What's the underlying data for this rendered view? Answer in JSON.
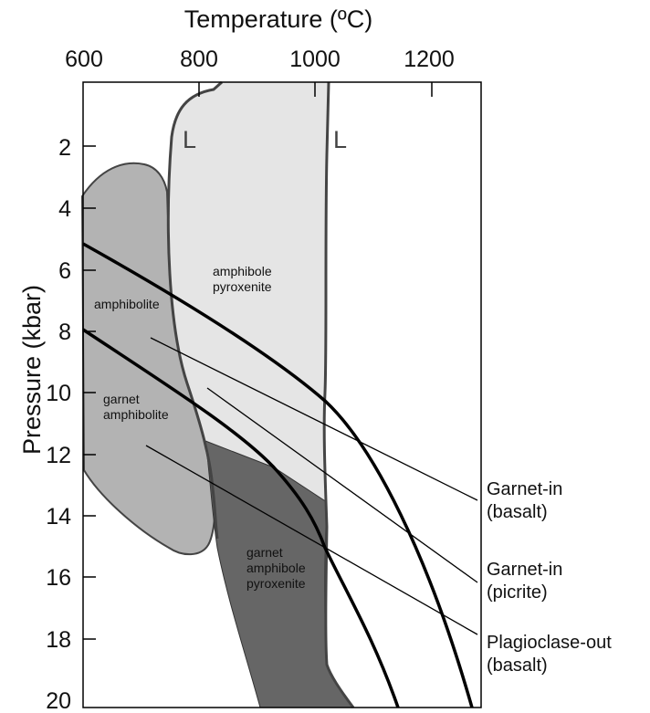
{
  "title": "",
  "axes": {
    "x_title": "Temperature (ºC)",
    "y_title": "Pressure (kbar)",
    "x_ticks": [
      "600",
      "800",
      "1000",
      "1200"
    ],
    "y_ticks": [
      "2",
      "4",
      "6",
      "8",
      "10",
      "12",
      "14",
      "16",
      "18",
      "20"
    ]
  },
  "fields": {
    "amphibolite": "amphibolite",
    "garnet_amphibolite": [
      "garnet",
      "amphibolite"
    ],
    "amphibole_pyroxenite": [
      "amphibole",
      "pyroxenite"
    ],
    "garnet_amphibole_pyroxenite": [
      "garnet",
      "amphibole",
      "pyroxenite"
    ]
  },
  "liquidus_labels": [
    "L",
    "L"
  ],
  "curves": {
    "garnet_in_basalt": [
      "Garnet-in",
      "(basalt)"
    ],
    "garnet_in_picrite": [
      "Garnet-in",
      "(picrite)"
    ],
    "plagioclase_out_basalt": [
      "Plagioclase-out",
      "(basalt)"
    ]
  },
  "colors": {
    "amphibolite_fill": "#b3b3b3",
    "amphibole_pyroxenite_fill": "#e5e5e5",
    "garnet_amphibole_pyroxenite_fill": "#666666",
    "outline": "#444444",
    "line": "#000000"
  }
}
